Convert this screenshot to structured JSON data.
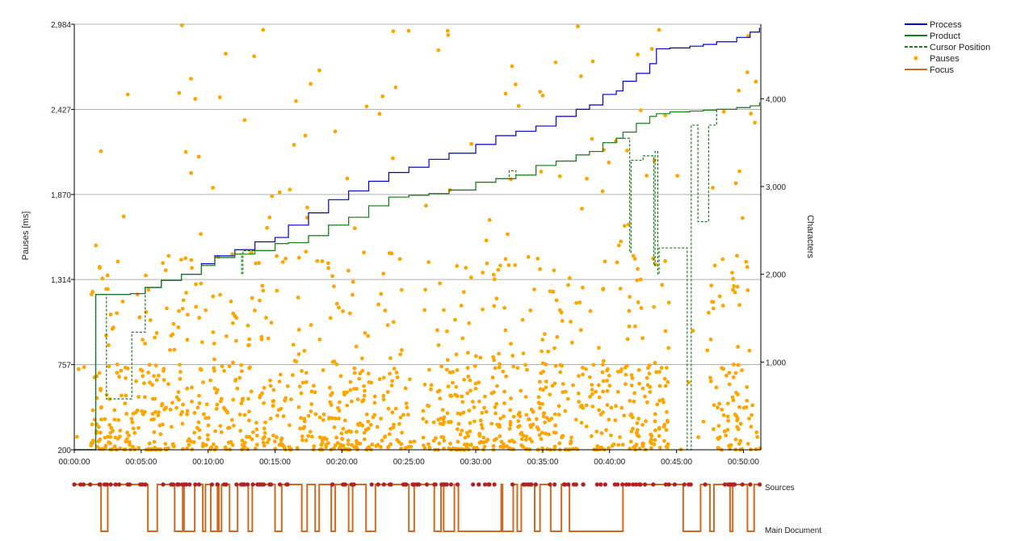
{
  "colors": {
    "process": "#0000cc",
    "product": "#1a7f1a",
    "cursor": "#1a7f1a",
    "pauses": "#ffa500",
    "focus": "#d2691e",
    "sources_marker": "#b22222",
    "grid": "#b0b0b0",
    "axis": "#000000"
  },
  "chart_data": {
    "type": "line",
    "grid": true,
    "legend_position": "top-right",
    "legend": [
      "Process",
      "Product",
      "Cursor Position",
      "Pauses",
      "Focus"
    ],
    "y_left": {
      "label": "Pauses [ms]",
      "range": [
        200,
        2984
      ],
      "ticks": [
        "200",
        "757",
        "1,314",
        "1,870",
        "2,427",
        "2,984"
      ],
      "tick_values": [
        200,
        757,
        1314,
        1870,
        2427,
        2984
      ]
    },
    "y_right": {
      "label": "Characters",
      "range": [
        0,
        4850
      ],
      "ticks": [
        "1,000",
        "2,000",
        "3,000",
        "4,000"
      ],
      "tick_values": [
        1000,
        2000,
        3000,
        4000
      ]
    },
    "x_axis": {
      "range_minutes": [
        0,
        51.3
      ],
      "ticks": [
        "00:00:00",
        "00:05:00",
        "00:10:00",
        "00:15:00",
        "00:20:00",
        "00:25:00",
        "00:30:00",
        "00:35:00",
        "00:40:00",
        "00:45:00",
        "00:50:00"
      ],
      "tick_minutes": [
        0,
        5,
        10,
        15,
        20,
        25,
        30,
        35,
        40,
        45,
        50
      ]
    },
    "series": [
      {
        "name": "Process",
        "style": "solid",
        "x": [
          0,
          1.3,
          1.6,
          4.2,
          5.3,
          6.5,
          8,
          9.5,
          10.5,
          12,
          13.5,
          15,
          16,
          17.5,
          19,
          20.5,
          22,
          23.5,
          25,
          26.5,
          28,
          30,
          31.5,
          33,
          34.5,
          36,
          37.5,
          38.5,
          39.5,
          40.5,
          41,
          42,
          43,
          43.5,
          44.5,
          46,
          47,
          48,
          49.5,
          50.5,
          51.2
        ],
        "y": [
          0,
          0,
          1770,
          1780,
          1850,
          1930,
          2000,
          2120,
          2210,
          2280,
          2370,
          2420,
          2560,
          2700,
          2850,
          2950,
          3060,
          3160,
          3220,
          3310,
          3380,
          3480,
          3580,
          3630,
          3690,
          3800,
          3880,
          3930,
          4050,
          4090,
          4200,
          4290,
          4400,
          4570,
          4580,
          4600,
          4620,
          4650,
          4700,
          4760,
          4810
        ]
      },
      {
        "name": "Product",
        "style": "solid",
        "x": [
          0,
          1.3,
          1.6,
          4.2,
          5.3,
          6.5,
          8,
          9.5,
          10.5,
          12,
          13.5,
          15,
          16,
          17.5,
          19,
          20.5,
          22,
          23.5,
          25,
          26.5,
          28,
          30,
          31.5,
          33,
          34.5,
          36,
          37.5,
          38.5,
          39.5,
          40.5,
          41,
          42,
          43,
          43.5,
          44.5,
          46,
          47,
          48,
          49.5,
          50.5,
          51.2
        ],
        "y": [
          0,
          0,
          1770,
          1780,
          1850,
          1930,
          2000,
          2100,
          2190,
          2230,
          2270,
          2350,
          2360,
          2440,
          2560,
          2650,
          2780,
          2880,
          2900,
          2920,
          2960,
          3050,
          3090,
          3130,
          3240,
          3290,
          3360,
          3400,
          3500,
          3550,
          3620,
          3720,
          3800,
          3830,
          3850,
          3860,
          3870,
          3880,
          3900,
          3920,
          3960
        ]
      },
      {
        "name": "Cursor Position",
        "style": "dashed",
        "x": [
          0,
          1.3,
          1.6,
          2.3,
          2.4,
          4.2,
          4.3,
          5.2,
          5.3,
          6.5,
          8,
          9.5,
          10.5,
          12,
          12.5,
          12.6,
          13.5,
          15,
          16,
          17.5,
          19,
          20.5,
          22,
          23.5,
          25,
          26.5,
          28,
          30,
          31.5,
          32.5,
          33,
          34.5,
          36,
          37.5,
          38.5,
          39.5,
          40.5,
          41.5,
          41.6,
          42.5,
          43.3,
          43.4,
          43.6,
          43.7,
          44.5,
          45.7,
          45.8,
          46.0,
          46.1,
          46.5,
          46.6,
          47.3,
          47.4,
          48,
          49.5,
          50.5,
          51.2
        ],
        "y": [
          0,
          0,
          1770,
          1770,
          580,
          580,
          1340,
          1340,
          1850,
          1930,
          2000,
          2100,
          2190,
          2230,
          2000,
          2270,
          2270,
          2350,
          2360,
          2440,
          2560,
          2650,
          2780,
          2880,
          2900,
          2920,
          2960,
          3050,
          3090,
          3180,
          3130,
          3240,
          3290,
          3360,
          3400,
          3500,
          3550,
          2250,
          3300,
          3350,
          2100,
          3400,
          2000,
          2300,
          2300,
          2300,
          0,
          0,
          3700,
          3700,
          2600,
          2600,
          3700,
          3880,
          3900,
          3920,
          3960
        ]
      },
      {
        "name": "Focus",
        "style": "step",
        "levels": [
          "Sources",
          "Main Document"
        ]
      }
    ]
  },
  "bottom_panel": {
    "label_sources": "Sources",
    "label_main": "Main Document"
  }
}
